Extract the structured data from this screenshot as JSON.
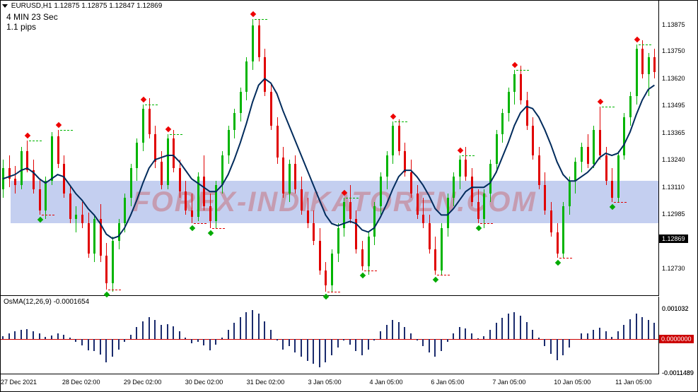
{
  "title": {
    "symbol": "EURUSD,H1",
    "ohlc": "1.12875 1.12875 1.12847 1.12869"
  },
  "info": {
    "line1": "4 MIN 23 Sec",
    "line2": "1.1 pips"
  },
  "osc_title": "OsMA(12,26,9) -0.0001654",
  "watermark": "FOREX-INDIKATOREN.COM",
  "price_axis": {
    "min": 1.126,
    "max": 1.1394,
    "ticks": [
      1.13875,
      1.1375,
      1.1362,
      1.13495,
      1.13365,
      1.1324,
      1.1311,
      1.12985,
      1.12859,
      1.1273
    ],
    "current": 1.12869
  },
  "osc_axis": {
    "min": -0.0012,
    "max": 0.0011,
    "ticks": [
      0.001032,
      0.0,
      -0.0011489
    ],
    "zero_label": "0.0000000"
  },
  "x_labels": [
    "27 Dec 2021",
    "28 Dec 02:00",
    "29 Dec 02:00",
    "30 Dec 02:00",
    "31 Dec 02:00",
    "3 Jan 05:00",
    "4 Jan 05:00",
    "6 Jan 05:00",
    "7 Jan 05:00",
    "10 Jan 05:00",
    "11 Jan 05:00"
  ],
  "colors": {
    "up": "#00b400",
    "down": "#e00000",
    "ma": "#002b5c",
    "osc": "#1a2b6d",
    "zero": "#c00",
    "wm_bg": "#c4cff0",
    "wm_fg": "rgba(200,60,60,0.35)"
  },
  "candles": [
    [
      1.131,
      1.1324,
      1.1306,
      1.132,
      1
    ],
    [
      1.132,
      1.1326,
      1.1311,
      1.1315,
      0
    ],
    [
      1.1315,
      1.1321,
      1.1308,
      1.1312,
      0
    ],
    [
      1.1312,
      1.133,
      1.131,
      1.1328,
      1
    ],
    [
      1.1328,
      1.1333,
      1.1318,
      1.1319,
      0
    ],
    [
      1.1319,
      1.1324,
      1.1308,
      1.131,
      0
    ],
    [
      1.131,
      1.1315,
      1.1298,
      1.13,
      0
    ],
    [
      1.13,
      1.1316,
      1.1296,
      1.1314,
      1
    ],
    [
      1.1314,
      1.1337,
      1.1312,
      1.1335,
      1
    ],
    [
      1.1335,
      1.1338,
      1.132,
      1.1322,
      0
    ],
    [
      1.1322,
      1.1326,
      1.1306,
      1.1308,
      0
    ],
    [
      1.1308,
      1.1312,
      1.1294,
      1.1296,
      0
    ],
    [
      1.1296,
      1.1302,
      1.129,
      1.1298,
      1
    ],
    [
      1.1298,
      1.1304,
      1.1292,
      1.1294,
      0
    ],
    [
      1.1294,
      1.1299,
      1.1278,
      1.128,
      0
    ],
    [
      1.128,
      1.1298,
      1.1276,
      1.1296,
      1
    ],
    [
      1.1296,
      1.1303,
      1.1276,
      1.1279,
      0
    ],
    [
      1.1279,
      1.1285,
      1.1263,
      1.1266,
      0
    ],
    [
      1.1266,
      1.1288,
      1.1262,
      1.1286,
      1
    ],
    [
      1.1286,
      1.1296,
      1.1282,
      1.1294,
      1
    ],
    [
      1.1294,
      1.1308,
      1.129,
      1.1306,
      1
    ],
    [
      1.1306,
      1.1322,
      1.1302,
      1.132,
      1
    ],
    [
      1.132,
      1.1334,
      1.1314,
      1.1332,
      1
    ],
    [
      1.1332,
      1.135,
      1.1328,
      1.1348,
      1
    ],
    [
      1.1348,
      1.1353,
      1.1334,
      1.1336,
      0
    ],
    [
      1.1336,
      1.134,
      1.132,
      1.1323,
      0
    ],
    [
      1.1323,
      1.1328,
      1.131,
      1.1312,
      0
    ],
    [
      1.1312,
      1.1336,
      1.131,
      1.1334,
      1
    ],
    [
      1.1334,
      1.1338,
      1.1318,
      1.132,
      0
    ],
    [
      1.132,
      1.1324,
      1.1306,
      1.1309,
      0
    ],
    [
      1.1309,
      1.1314,
      1.1298,
      1.13,
      0
    ],
    [
      1.13,
      1.1308,
      1.1294,
      1.1297,
      0
    ],
    [
      1.1297,
      1.1318,
      1.1295,
      1.1316,
      1
    ],
    [
      1.1316,
      1.1326,
      1.13,
      1.1302,
      0
    ],
    [
      1.1302,
      1.1308,
      1.1292,
      1.1295,
      0
    ],
    [
      1.1295,
      1.1314,
      1.1292,
      1.1312,
      1
    ],
    [
      1.1312,
      1.1328,
      1.1308,
      1.1326,
      1
    ],
    [
      1.1326,
      1.134,
      1.1322,
      1.1338,
      1
    ],
    [
      1.1338,
      1.1348,
      1.1334,
      1.1346,
      1
    ],
    [
      1.1346,
      1.1358,
      1.1342,
      1.1356,
      1
    ],
    [
      1.1356,
      1.1372,
      1.1352,
      1.137,
      1
    ],
    [
      1.137,
      1.139,
      1.1366,
      1.1387,
      1
    ],
    [
      1.1387,
      1.139,
      1.137,
      1.1372,
      0
    ],
    [
      1.1372,
      1.1376,
      1.1354,
      1.1356,
      0
    ],
    [
      1.1356,
      1.136,
      1.1338,
      1.134,
      0
    ],
    [
      1.134,
      1.1344,
      1.1322,
      1.1325,
      0
    ],
    [
      1.1325,
      1.133,
      1.1306,
      1.1308,
      0
    ],
    [
      1.1308,
      1.1324,
      1.1304,
      1.1322,
      1
    ],
    [
      1.1322,
      1.1326,
      1.1308,
      1.131,
      0
    ],
    [
      1.131,
      1.1316,
      1.1298,
      1.13,
      0
    ],
    [
      1.13,
      1.1306,
      1.1292,
      1.1294,
      0
    ],
    [
      1.1294,
      1.13,
      1.1284,
      1.1286,
      0
    ],
    [
      1.1286,
      1.1292,
      1.127,
      1.1272,
      0
    ],
    [
      1.1272,
      1.1276,
      1.1262,
      1.1265,
      0
    ],
    [
      1.1265,
      1.1282,
      1.1262,
      1.128,
      1
    ],
    [
      1.128,
      1.1294,
      1.1276,
      1.1292,
      1
    ],
    [
      1.1292,
      1.1306,
      1.1288,
      1.1304,
      1
    ],
    [
      1.1304,
      1.1312,
      1.1294,
      1.1296,
      0
    ],
    [
      1.1296,
      1.13,
      1.128,
      1.1282,
      0
    ],
    [
      1.1282,
      1.1286,
      1.1272,
      1.1274,
      0
    ],
    [
      1.1274,
      1.129,
      1.127,
      1.1288,
      1
    ],
    [
      1.1288,
      1.1304,
      1.1284,
      1.1302,
      1
    ],
    [
      1.1302,
      1.1318,
      1.1298,
      1.1316,
      1
    ],
    [
      1.1316,
      1.1328,
      1.131,
      1.1326,
      1
    ],
    [
      1.1326,
      1.1342,
      1.1322,
      1.134,
      1
    ],
    [
      1.134,
      1.1343,
      1.1326,
      1.1328,
      0
    ],
    [
      1.1328,
      1.1332,
      1.1316,
      1.1318,
      0
    ],
    [
      1.1318,
      1.1324,
      1.1306,
      1.1308,
      0
    ],
    [
      1.1308,
      1.1312,
      1.1296,
      1.1298,
      0
    ],
    [
      1.1298,
      1.1306,
      1.1292,
      1.1294,
      0
    ],
    [
      1.1294,
      1.1298,
      1.128,
      1.1282,
      0
    ],
    [
      1.1282,
      1.1288,
      1.127,
      1.1272,
      0
    ],
    [
      1.1272,
      1.1294,
      1.127,
      1.1292,
      1
    ],
    [
      1.1292,
      1.1308,
      1.1288,
      1.1306,
      1
    ],
    [
      1.1306,
      1.1318,
      1.1302,
      1.1316,
      1
    ],
    [
      1.1316,
      1.1326,
      1.131,
      1.1324,
      1
    ],
    [
      1.1324,
      1.133,
      1.1314,
      1.1316,
      0
    ],
    [
      1.1316,
      1.132,
      1.1302,
      1.1304,
      0
    ],
    [
      1.1304,
      1.131,
      1.1294,
      1.1296,
      0
    ],
    [
      1.1296,
      1.131,
      1.1292,
      1.1308,
      1
    ],
    [
      1.1308,
      1.1324,
      1.1304,
      1.1322,
      1
    ],
    [
      1.1322,
      1.1338,
      1.1318,
      1.1336,
      1
    ],
    [
      1.1336,
      1.1348,
      1.1332,
      1.1346,
      1
    ],
    [
      1.1346,
      1.1358,
      1.1342,
      1.1356,
      1
    ],
    [
      1.1356,
      1.1366,
      1.135,
      1.1364,
      1
    ],
    [
      1.1364,
      1.1368,
      1.135,
      1.1352,
      0
    ],
    [
      1.1352,
      1.1356,
      1.1338,
      1.134,
      0
    ],
    [
      1.134,
      1.1344,
      1.1324,
      1.1326,
      0
    ],
    [
      1.1326,
      1.133,
      1.131,
      1.1312,
      0
    ],
    [
      1.1312,
      1.1318,
      1.1298,
      1.13,
      0
    ],
    [
      1.13,
      1.1304,
      1.1288,
      1.129,
      0
    ],
    [
      1.129,
      1.1294,
      1.1278,
      1.128,
      0
    ],
    [
      1.128,
      1.1304,
      1.1278,
      1.1302,
      1
    ],
    [
      1.1302,
      1.1316,
      1.1298,
      1.1314,
      1
    ],
    [
      1.1314,
      1.1325,
      1.1308,
      1.1323,
      1
    ],
    [
      1.1323,
      1.1332,
      1.1318,
      1.133,
      1
    ],
    [
      1.133,
      1.1336,
      1.132,
      1.1322,
      0
    ],
    [
      1.1322,
      1.134,
      1.132,
      1.1338,
      1
    ],
    [
      1.1338,
      1.1349,
      1.1324,
      1.1326,
      0
    ],
    [
      1.1326,
      1.133,
      1.1312,
      1.1314,
      0
    ],
    [
      1.1314,
      1.132,
      1.1304,
      1.1306,
      0
    ],
    [
      1.1306,
      1.1328,
      1.1304,
      1.1326,
      1
    ],
    [
      1.1326,
      1.1346,
      1.1324,
      1.1344,
      1
    ],
    [
      1.1344,
      1.1356,
      1.134,
      1.1354,
      1
    ],
    [
      1.1354,
      1.1378,
      1.135,
      1.1376,
      1
    ],
    [
      1.1376,
      1.138,
      1.1362,
      1.1364,
      0
    ],
    [
      1.1364,
      1.1374,
      1.1354,
      1.1372,
      1
    ],
    [
      1.1372,
      1.1376,
      1.1362,
      1.1365,
      0
    ]
  ],
  "ma": [
    1.1315,
    1.1316,
    1.1317,
    1.1319,
    1.132,
    1.1318,
    1.1315,
    1.1313,
    1.1315,
    1.1317,
    1.1316,
    1.1312,
    1.1308,
    1.1305,
    1.1301,
    1.1298,
    1.1294,
    1.1289,
    1.1287,
    1.1288,
    1.1292,
    1.1298,
    1.1305,
    1.1313,
    1.132,
    1.1324,
    1.1325,
    1.1326,
    1.1326,
    1.1323,
    1.1319,
    1.1315,
    1.1313,
    1.1311,
    1.1309,
    1.1309,
    1.1312,
    1.1317,
    1.1324,
    1.1332,
    1.1341,
    1.1351,
    1.1359,
    1.1362,
    1.136,
    1.1355,
    1.1347,
    1.134,
    1.1333,
    1.1326,
    1.1319,
    1.1312,
    1.1305,
    1.1298,
    1.1294,
    1.1293,
    1.1294,
    1.1295,
    1.1294,
    1.1291,
    1.129,
    1.1292,
    1.1297,
    1.1303,
    1.131,
    1.1316,
    1.1319,
    1.1319,
    1.1316,
    1.1312,
    1.1307,
    1.1301,
    1.1298,
    1.1298,
    1.1301,
    1.1305,
    1.1309,
    1.1311,
    1.1311,
    1.1311,
    1.1313,
    1.1318,
    1.1325,
    1.1332,
    1.134,
    1.1346,
    1.1349,
    1.1348,
    1.1344,
    1.1338,
    1.1331,
    1.1323,
    1.1317,
    1.1314,
    1.1314,
    1.1316,
    1.1318,
    1.1321,
    1.1325,
    1.1327,
    1.1326,
    1.1327,
    1.1331,
    1.1337,
    1.1345,
    1.1352,
    1.1357,
    1.1359
  ],
  "fractals_high": [
    [
      4,
      1.1333
    ],
    [
      9,
      1.1338
    ],
    [
      23,
      1.135
    ],
    [
      27,
      1.1336
    ],
    [
      41,
      1.139
    ],
    [
      56,
      1.1306
    ],
    [
      64,
      1.1342
    ],
    [
      75,
      1.1326
    ],
    [
      84,
      1.1366
    ],
    [
      98,
      1.1349
    ],
    [
      104,
      1.1378
    ]
  ],
  "fractals_low": [
    [
      6,
      1.1298
    ],
    [
      17,
      1.1263
    ],
    [
      31,
      1.1294
    ],
    [
      34,
      1.1292
    ],
    [
      53,
      1.1262
    ],
    [
      59,
      1.1272
    ],
    [
      71,
      1.127
    ],
    [
      78,
      1.1294
    ],
    [
      91,
      1.1278
    ],
    [
      100,
      1.1304
    ]
  ],
  "osma": [
    0.0001,
    0.00018,
    0.00025,
    0.0003,
    0.00034,
    0.00027,
    0.00018,
    8e-05,
    0.00012,
    0.0002,
    0.00014,
    4e-05,
    -0.0001,
    -0.00022,
    -0.00038,
    -0.0004,
    -0.00052,
    -0.0008,
    -0.0006,
    -0.00035,
    -0.0001,
    0.00015,
    0.0004,
    0.0006,
    0.00075,
    0.00065,
    0.00048,
    0.0005,
    0.00044,
    0.00025,
    5e-05,
    -0.00015,
    -0.0001,
    -0.00022,
    -0.00038,
    -0.0002,
    5e-05,
    0.0003,
    0.00055,
    0.00075,
    0.0009,
    0.00098,
    0.00085,
    0.0006,
    0.0003,
    -5e-05,
    -0.00035,
    -0.00025,
    -0.00045,
    -0.0006,
    -0.00075,
    -0.00085,
    -0.00095,
    -0.0008,
    -0.00055,
    -0.00028,
    -5e-05,
    -0.0002,
    -0.0004,
    -0.00055,
    -0.00035,
    -5e-05,
    0.00025,
    0.00048,
    0.00065,
    0.00058,
    0.0004,
    0.0002,
    -5e-05,
    -0.00025,
    -0.00045,
    -0.0006,
    -0.0004,
    -0.0001,
    0.0002,
    0.0004,
    0.00035,
    0.0002,
    3e-05,
    0.0001,
    0.0003,
    0.00055,
    0.00072,
    0.00085,
    0.0009,
    0.00078,
    0.00058,
    0.00032,
    5e-05,
    -0.00025,
    -0.0005,
    -0.00072,
    -0.00055,
    -0.00028,
    0.0,
    0.0002,
    0.00018,
    0.00032,
    0.00038,
    0.00025,
    8e-05,
    0.00025,
    0.00048,
    0.00068,
    0.00085,
    0.00075,
    0.00065,
    0.00055
  ]
}
